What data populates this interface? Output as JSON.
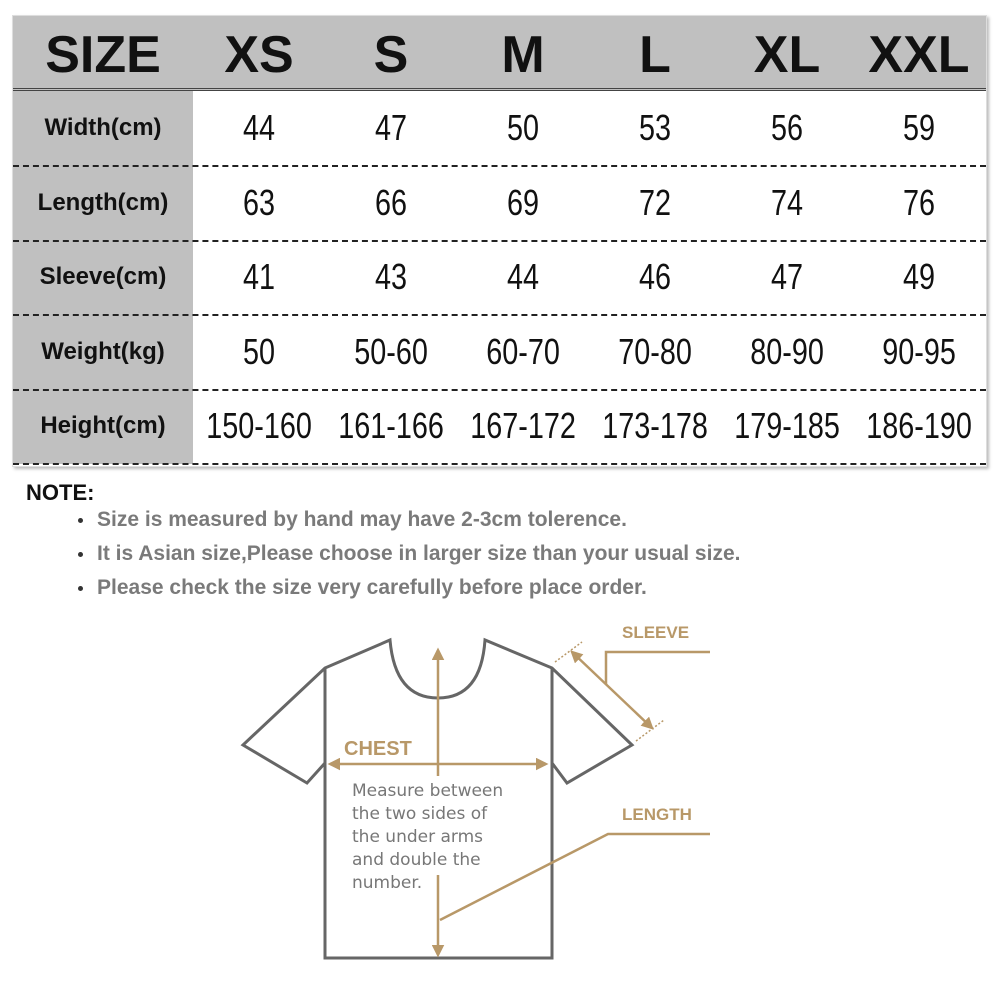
{
  "table": {
    "header_label": "SIZE",
    "sizes": [
      "XS",
      "S",
      "M",
      "L",
      "XL",
      "XXL"
    ],
    "rows": [
      {
        "label": "Width(cm)",
        "values": [
          "44",
          "47",
          "50",
          "53",
          "56",
          "59"
        ]
      },
      {
        "label": "Length(cm)",
        "values": [
          "63",
          "66",
          "69",
          "72",
          "74",
          "76"
        ]
      },
      {
        "label": "Sleeve(cm)",
        "values": [
          "41",
          "43",
          "44",
          "46",
          "47",
          "49"
        ]
      },
      {
        "label": "Weight(kg)",
        "values": [
          "50",
          "50-60",
          "60-70",
          "70-80",
          "80-90",
          "90-95"
        ]
      },
      {
        "label": "Height(cm)",
        "values": [
          "150-160",
          "161-166",
          "167-172",
          "173-178",
          "179-185",
          "186-190"
        ]
      }
    ]
  },
  "note": {
    "title": "NOTE:",
    "items": [
      "Size is measured by hand may have 2-3cm tolerence.",
      "It is Asian size,Please choose in larger size than your usual size.",
      "Please check the size very carefully before place order."
    ]
  },
  "diagram": {
    "sleeve_label": "SLEEVE",
    "chest_label": "CHEST",
    "length_label": "LENGTH",
    "chest_note": [
      "Measure between",
      "the two sides of",
      "the under arms",
      "and double the",
      "number."
    ],
    "accent_color": "#b89868",
    "outline_color": "#666666"
  }
}
